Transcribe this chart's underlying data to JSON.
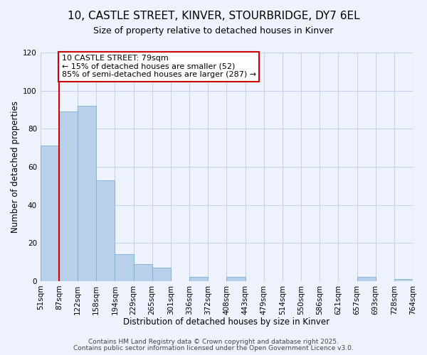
{
  "title": "10, CASTLE STREET, KINVER, STOURBRIDGE, DY7 6EL",
  "subtitle": "Size of property relative to detached houses in Kinver",
  "xlabel": "Distribution of detached houses by size in Kinver",
  "ylabel": "Number of detached properties",
  "bar_values": [
    71,
    89,
    92,
    53,
    14,
    9,
    7,
    0,
    2,
    0,
    2,
    0,
    0,
    0,
    0,
    0,
    0,
    2,
    0,
    1
  ],
  "bin_labels": [
    "51sqm",
    "87sqm",
    "122sqm",
    "158sqm",
    "194sqm",
    "229sqm",
    "265sqm",
    "301sqm",
    "336sqm",
    "372sqm",
    "408sqm",
    "443sqm",
    "479sqm",
    "514sqm",
    "550sqm",
    "586sqm",
    "621sqm",
    "657sqm",
    "693sqm",
    "728sqm",
    "764sqm"
  ],
  "bar_color": "#b8d0ea",
  "bar_edge_color": "#7aafd4",
  "vline_color": "#cc0000",
  "vline_x_index": 1,
  "annotation_box_text": "10 CASTLE STREET: 79sqm\n← 15% of detached houses are smaller (52)\n85% of semi-detached houses are larger (287) →",
  "annotation_box_edge_color": "#cc0000",
  "annotation_box_facecolor": "white",
  "ylim": [
    0,
    120
  ],
  "yticks": [
    0,
    20,
    40,
    60,
    80,
    100,
    120
  ],
  "footer_line1": "Contains HM Land Registry data © Crown copyright and database right 2025.",
  "footer_line2": "Contains public sector information licensed under the Open Government Licence v3.0.",
  "background_color": "#eef2fc",
  "grid_color": "#c5d3ec",
  "title_fontsize": 11,
  "subtitle_fontsize": 9,
  "axis_label_fontsize": 8.5,
  "tick_fontsize": 7.5,
  "annotation_fontsize": 8,
  "footer_fontsize": 6.5
}
